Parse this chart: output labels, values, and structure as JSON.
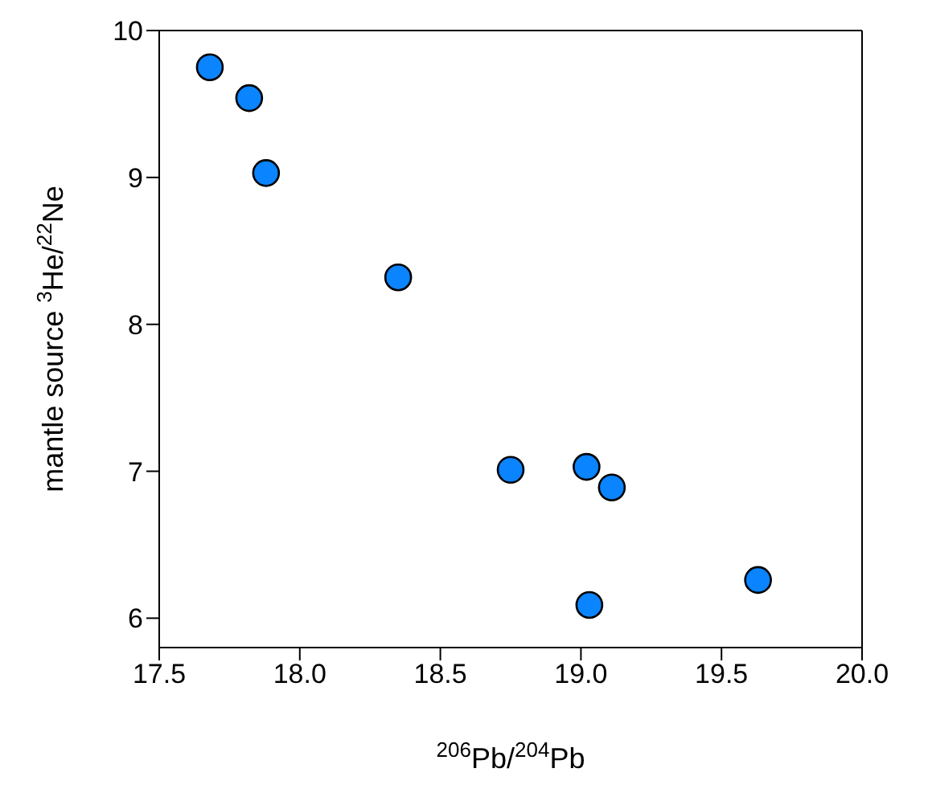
{
  "chart_data": {
    "type": "scatter",
    "xlabel": "$^{206}$Pb/$^{204}$Pb",
    "ylabel": "mantle source $^{3}$He/$^{22}$Ne",
    "x": [
      17.68,
      17.82,
      17.88,
      18.35,
      18.75,
      19.02,
      19.11,
      19.03,
      19.63
    ],
    "values": [
      9.75,
      9.54,
      9.03,
      8.32,
      7.01,
      7.03,
      6.89,
      6.09,
      6.26
    ],
    "color": "#0a84ff",
    "marker": "circle",
    "xlim": [
      17.5,
      20.0
    ],
    "xticks": [
      17.5,
      {
        "value": 18,
        "label": "18.0"
      },
      18.5,
      {
        "value": 19,
        "label": "19.0"
      },
      19.5,
      {
        "value": 20,
        "label": "20.0"
      }
    ],
    "ylim": [
      5.8,
      10
    ],
    "yticks": [
      6,
      7,
      8,
      9,
      10
    ],
    "grid": false
  }
}
